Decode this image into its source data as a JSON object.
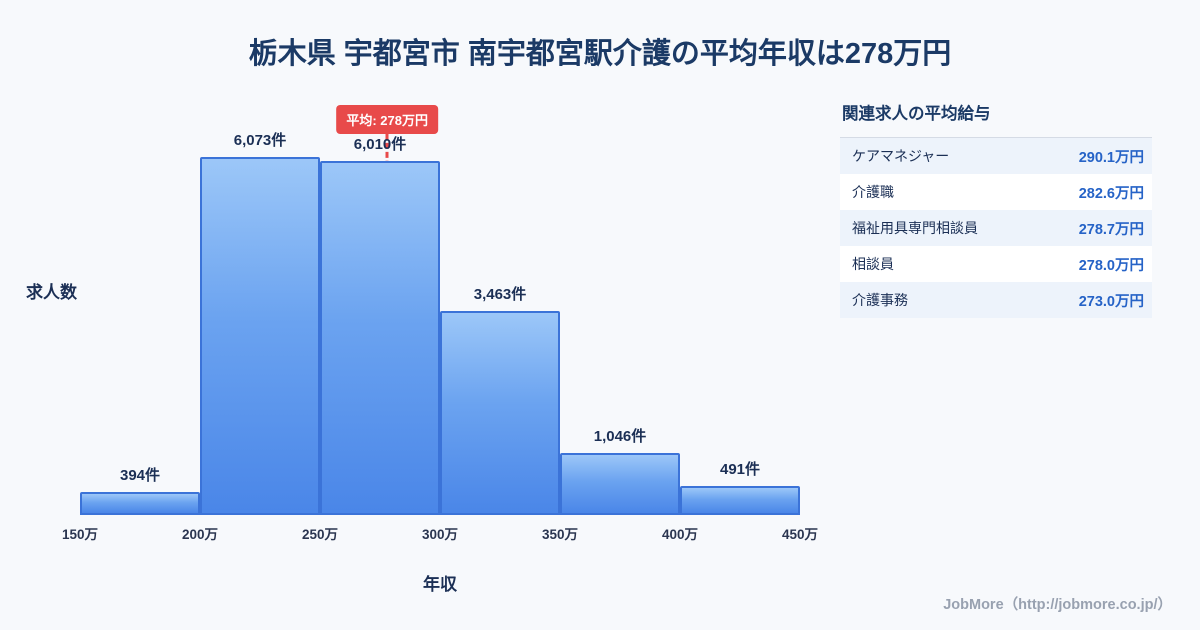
{
  "title": "栃木県 宇都宮市 南宇都宮駅介護の平均年収は278万円",
  "chart_data": {
    "type": "bar",
    "bin_edges": [
      "150万",
      "200万",
      "250万",
      "300万",
      "350万",
      "400万",
      "450万"
    ],
    "values": [
      394,
      6073,
      6010,
      3463,
      1046,
      491
    ],
    "value_labels": [
      "394件",
      "6,073件",
      "6,010件",
      "3,463件",
      "1,046件",
      "491件"
    ],
    "title": "栃木県 宇都宮市 南宇都宮駅介護の平均年収は278万円",
    "xlabel": "年収",
    "ylabel": "求人数",
    "xlim": [
      150,
      450
    ],
    "ylim": [
      0,
      6200
    ],
    "grid": false,
    "average_marker": {
      "value": 278,
      "label": "平均: 278万円"
    },
    "colors": {
      "bar_top": "#9cc7f8",
      "bar_bottom": "#4a86e8",
      "bar_border": "#3b73d8",
      "average_line": "#e84a4a",
      "title_text": "#1b3a66",
      "value_text": "#2663c7"
    }
  },
  "side_panel": {
    "heading": "関連求人の平均給与",
    "rows": [
      {
        "label": "ケアマネジャー",
        "value": "290.1万円"
      },
      {
        "label": "介護職",
        "value": "282.6万円"
      },
      {
        "label": "福祉用具専門相談員",
        "value": "278.7万円"
      },
      {
        "label": "相談員",
        "value": "278.0万円"
      },
      {
        "label": "介護事務",
        "value": "273.0万円"
      }
    ]
  },
  "footer": {
    "credit": "JobMore（http://jobmore.co.jp/）"
  }
}
